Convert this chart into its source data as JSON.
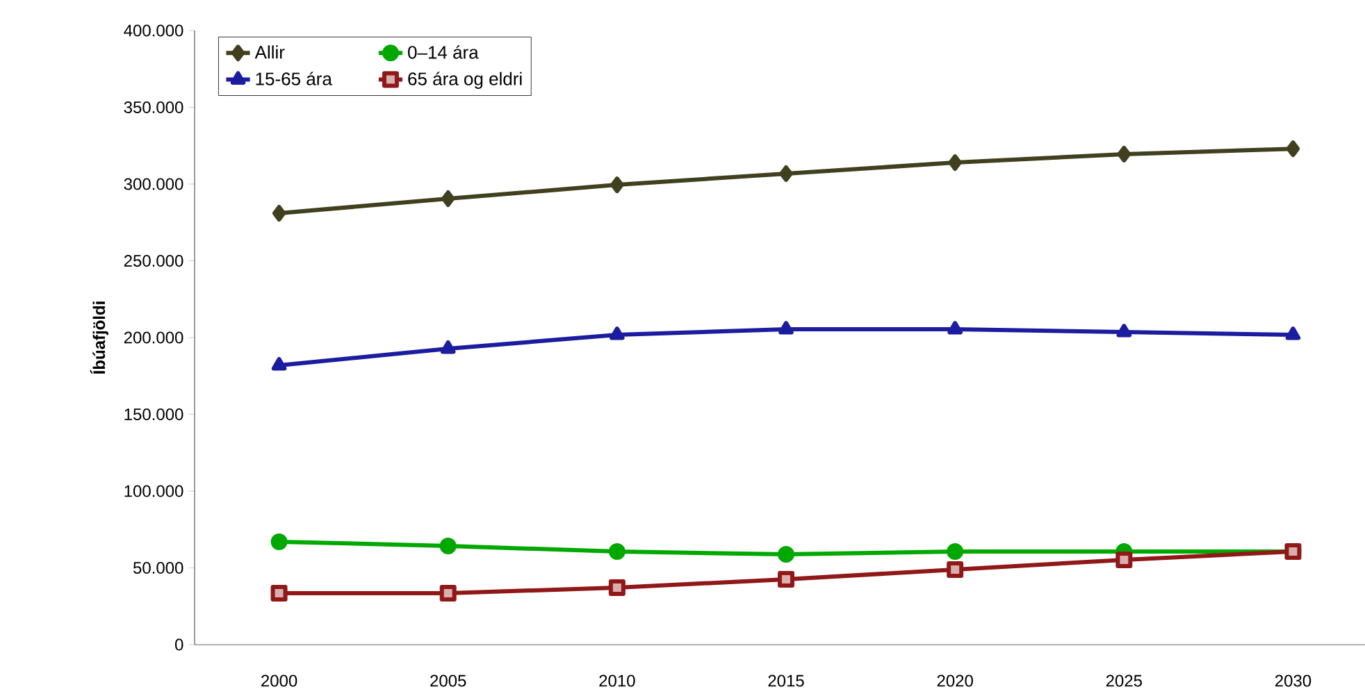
{
  "chart_data": {
    "type": "line",
    "ylabel": "Íbúafjöldi",
    "categories": [
      "2000",
      "2005",
      "2010",
      "2015",
      "2020",
      "2025",
      "2030"
    ],
    "ylim": [
      0,
      400000
    ],
    "yticks": [
      {
        "value": 0,
        "label": "0"
      },
      {
        "value": 50000,
        "label": "50.000"
      },
      {
        "value": 100000,
        "label": "100.000"
      },
      {
        "value": 150000,
        "label": "150.000"
      },
      {
        "value": 200000,
        "label": "200.000"
      },
      {
        "value": 250000,
        "label": "250.000"
      },
      {
        "value": 300000,
        "label": "300.000"
      },
      {
        "value": 350000,
        "label": "350.000"
      },
      {
        "value": 400000,
        "label": "400.000"
      }
    ],
    "legend": "top left",
    "grid": false,
    "line_style": "solid",
    "series": [
      {
        "name": "Allir",
        "color": "#404020",
        "marker": "diamond",
        "values": [
          281000,
          290500,
          299500,
          306800,
          314000,
          319500,
          323000
        ]
      },
      {
        "name": "0–14 ára",
        "color": "#00a800",
        "marker": "circle",
        "values": [
          67000,
          64300,
          60600,
          58800,
          60600,
          60600,
          60600
        ]
      },
      {
        "name": "15-65  ára",
        "color": "#1c1ca0",
        "marker": "triangle",
        "values": [
          181900,
          192800,
          201800,
          205400,
          205400,
          203600,
          201800
        ]
      },
      {
        "name": "65 ára og eldri",
        "color": "#901818",
        "marker": "square",
        "values": [
          33500,
          33500,
          37100,
          42500,
          48900,
          55200,
          60600
        ]
      }
    ]
  }
}
